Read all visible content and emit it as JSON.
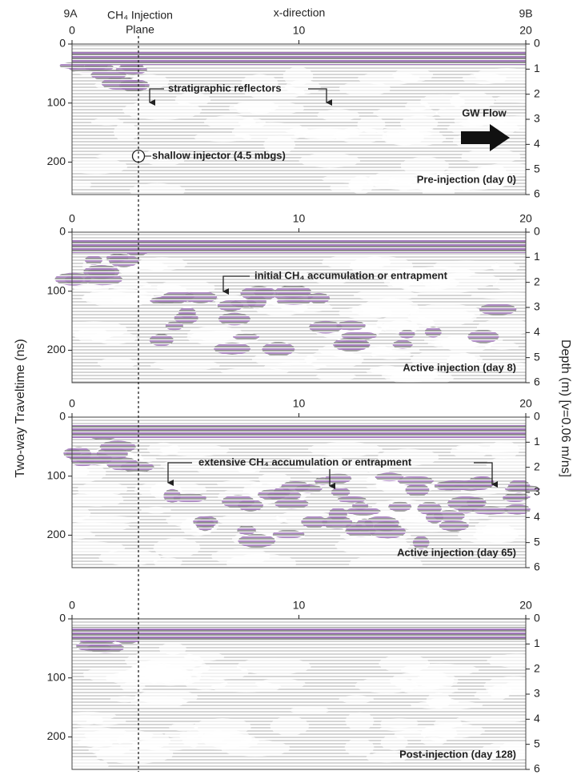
{
  "figure": {
    "left_end": "9A",
    "right_end": "9B",
    "injection_plane": [
      "CH₄ Injection",
      "Plane"
    ],
    "x_label": "x-direction",
    "y_label": "Two-way Traveltime (ns)",
    "y2_label": "Depth (m) [v=0.06 m/ns]"
  },
  "chart_data": [
    {
      "type": "radargram",
      "label": "Pre-injection (day 0)",
      "annotations": [
        "stratigraphic reflectors",
        "shallow injector (4.5 mbgs)",
        "GW Flow"
      ],
      "xlim": [
        0,
        20
      ],
      "xticks": [
        0,
        10,
        20
      ],
      "ylim": [
        0,
        255
      ],
      "yticks": [
        0,
        100,
        200
      ],
      "y2lim": [
        0,
        6
      ],
      "y2ticks": [
        0,
        1,
        2,
        3,
        4,
        5,
        6
      ],
      "y_inverted": true
    },
    {
      "type": "radargram",
      "label": "Active injection (day 8)",
      "annotations": [
        "initial CH₄ accumulation or entrapment"
      ],
      "xlim": [
        0,
        20
      ],
      "xticks": [
        0,
        10,
        20
      ],
      "ylim": [
        0,
        255
      ],
      "yticks": [
        0,
        100,
        200
      ],
      "y2lim": [
        0,
        6
      ],
      "y2ticks": [
        0,
        1,
        2,
        3,
        4,
        5,
        6
      ],
      "y_inverted": true
    },
    {
      "type": "radargram",
      "label": "Active injection (day 65)",
      "annotations": [
        "extensive CH₄ accumulation or entrapment"
      ],
      "xlim": [
        0,
        20
      ],
      "xticks": [
        0,
        10,
        20
      ],
      "ylim": [
        0,
        255
      ],
      "yticks": [
        0,
        100,
        200
      ],
      "y2lim": [
        0,
        6
      ],
      "y2ticks": [
        0,
        1,
        2,
        3,
        4,
        5,
        6
      ],
      "y_inverted": true
    },
    {
      "type": "radargram",
      "label": "Post-injection (day 128)",
      "annotations": [],
      "xlim": [
        0,
        20
      ],
      "xticks": [
        0,
        10,
        20
      ],
      "ylim": [
        0,
        255
      ],
      "yticks": [
        0,
        100,
        200
      ],
      "y2lim": [
        0,
        6
      ],
      "y2ticks": [
        0,
        1,
        2,
        3,
        4,
        5,
        6
      ],
      "y_inverted": true
    }
  ]
}
